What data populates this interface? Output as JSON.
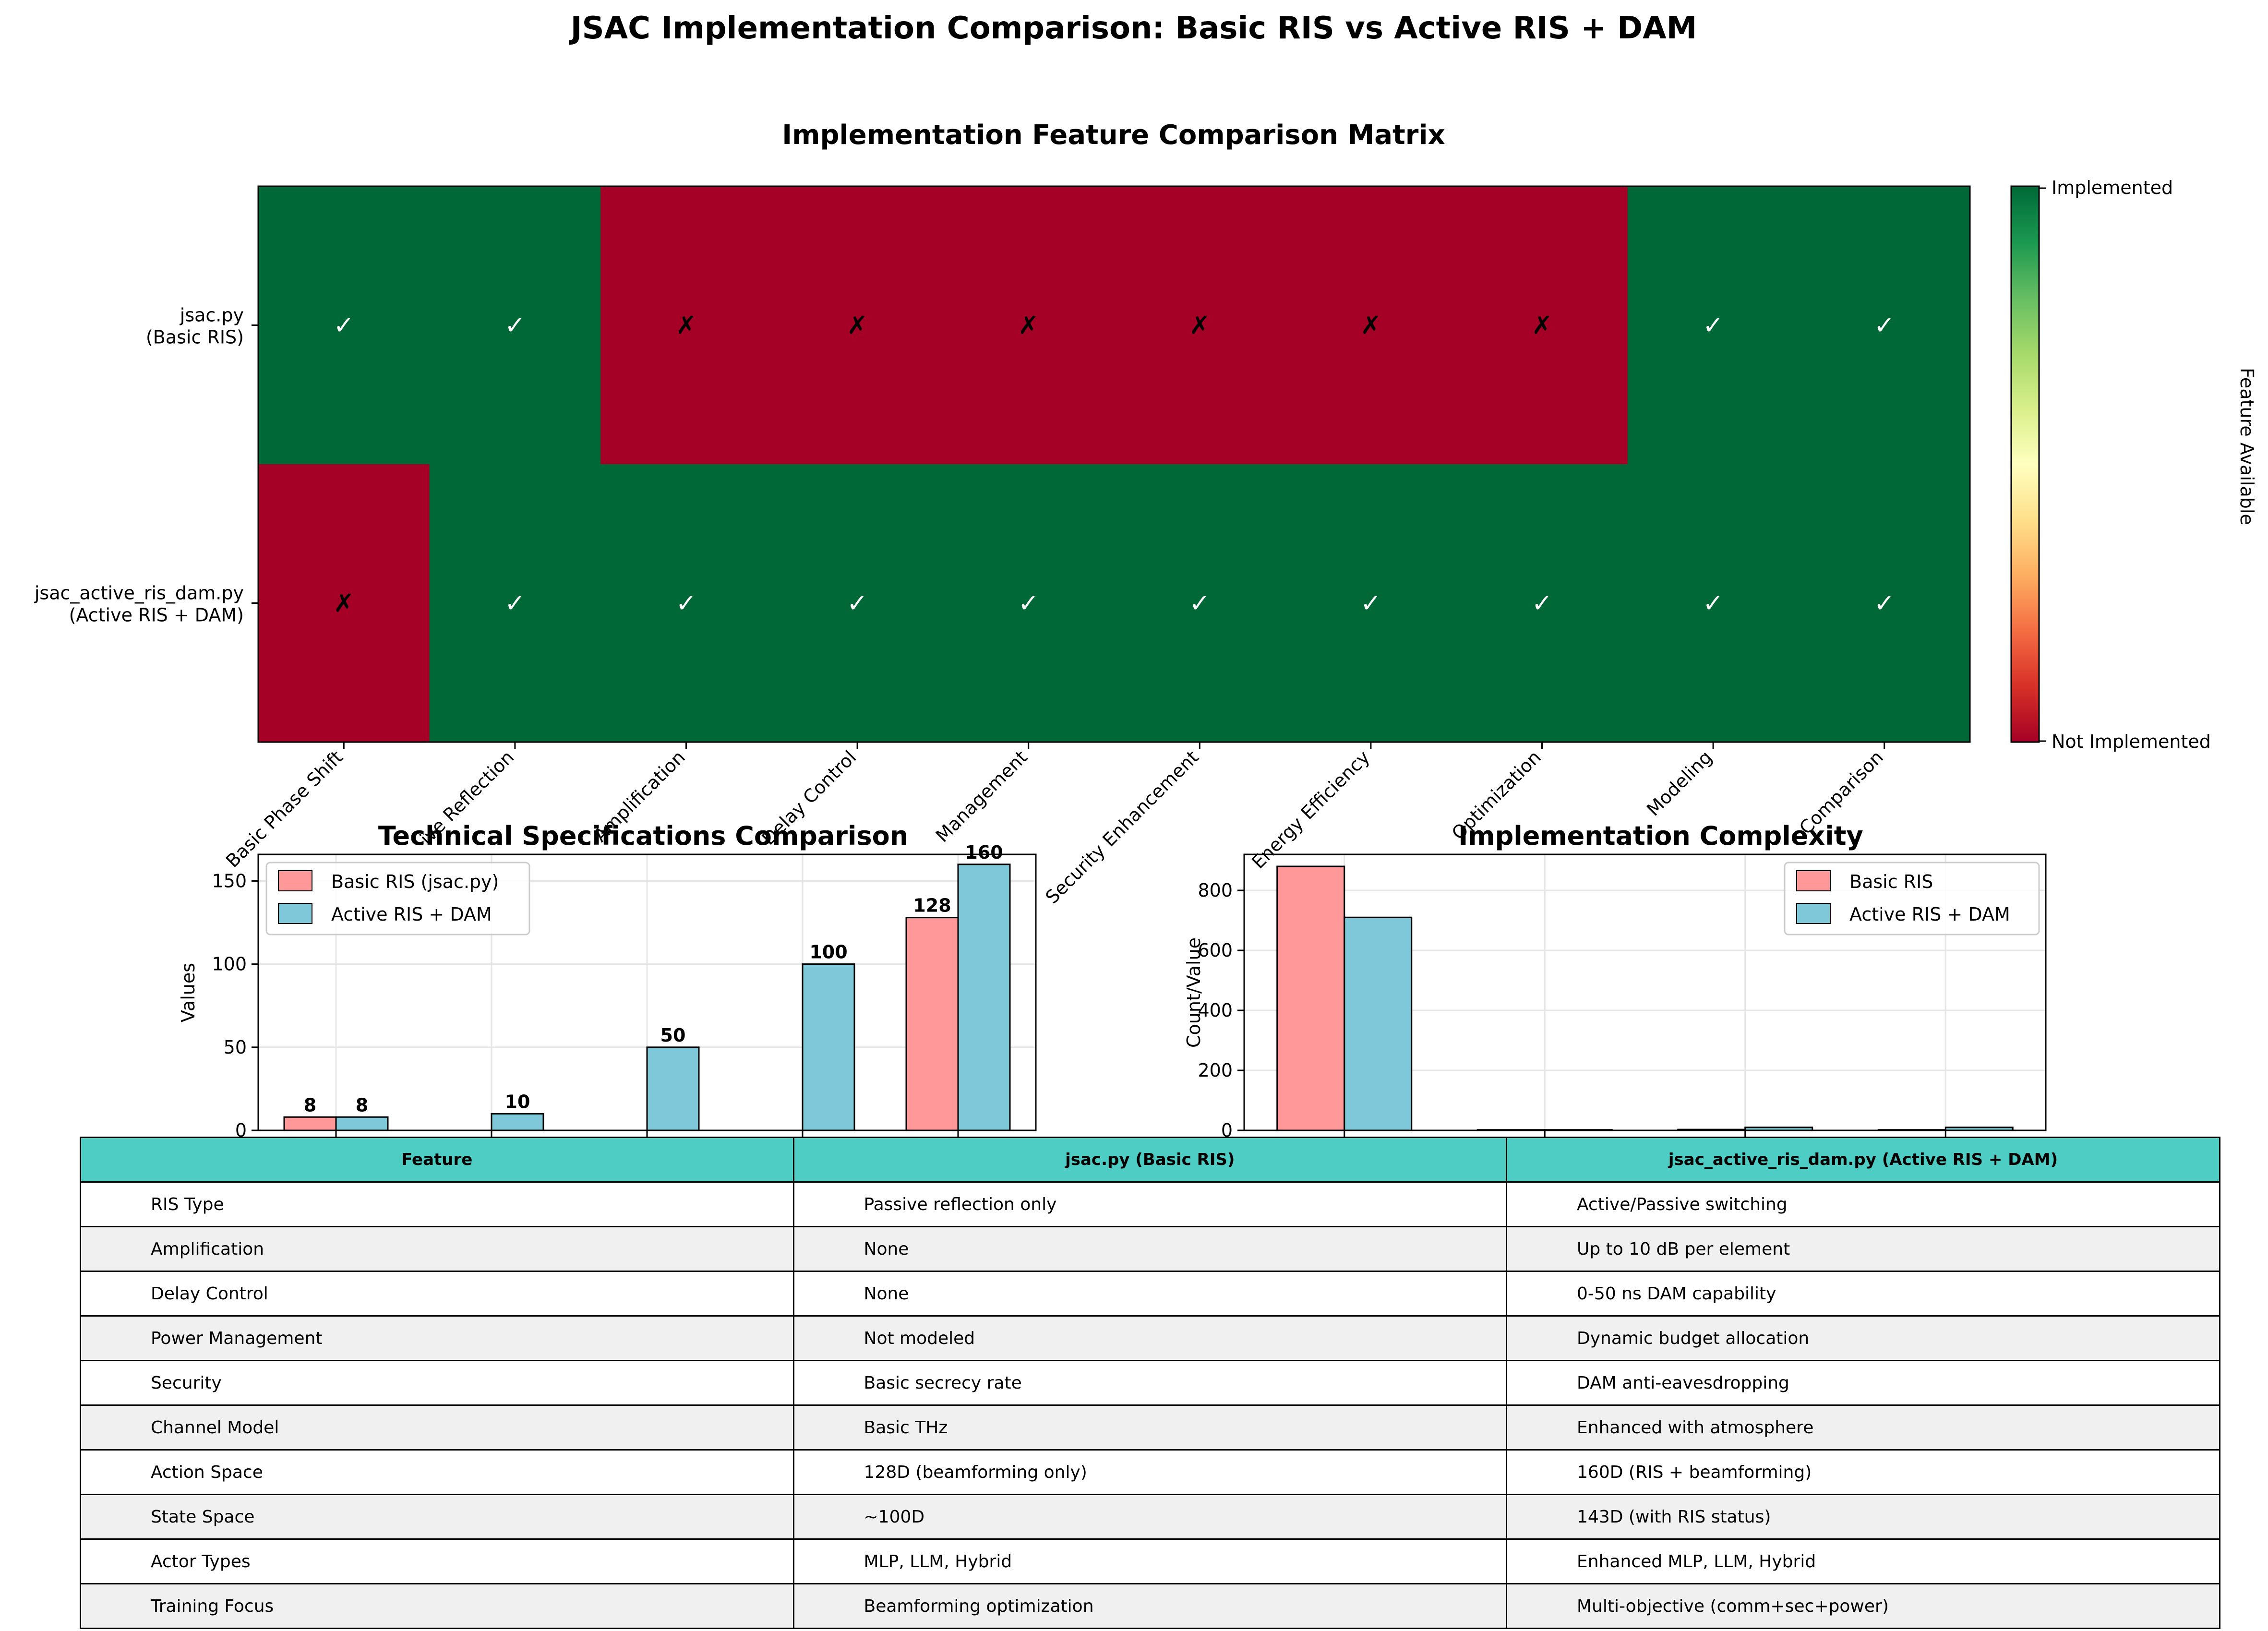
{
  "suptitle": "JSAC Implementation Comparison: Basic RIS vs Active RIS + DAM",
  "colors": {
    "implemented": "#006837",
    "not_implemented": "#a50026",
    "basic_ris": "#ff9999",
    "active_ris": "#7ec8d9",
    "table_header": "#4ecdc4",
    "table_row_alt": "#f0f0f0"
  },
  "chart_data": [
    {
      "type": "heatmap",
      "title": "Implementation Feature Comparison Matrix",
      "rows": [
        "jsac.py\n(Basic RIS)",
        "jsac_active_ris_dam.py\n(Active RIS + DAM)"
      ],
      "columns": [
        "Basic Phase Shift",
        "Passive Reflection",
        "Amplification",
        "Delay Control",
        "Power Management",
        "Security Enhancement",
        "Energy Efficiency",
        "Optimization",
        "Modeling",
        "Comparison"
      ],
      "visible_column_labels": [
        "Basic Phase Shift",
        "ive Reflection",
        "Amplification",
        "Delay Control",
        "Management",
        "Security Enhancement",
        "Energy Efficiency",
        "Optimization",
        "Modeling",
        "Comparison"
      ],
      "values": [
        [
          1,
          1,
          0,
          0,
          0,
          0,
          0,
          0,
          1,
          1
        ],
        [
          0,
          1,
          1,
          1,
          1,
          1,
          1,
          1,
          1,
          1
        ]
      ],
      "marks": {
        "yes": "✓",
        "no": "✗"
      },
      "colorbar": {
        "label": "Feature Available",
        "ticks": [
          "Implemented",
          "Not Implemented"
        ],
        "colormap": "RdYlGn",
        "range": [
          0,
          1
        ]
      }
    },
    {
      "type": "bar",
      "title": "Technical Specifications Comparison",
      "ylabel": "Values",
      "ylim": [
        0,
        166
      ],
      "yticks": [
        0,
        50,
        100,
        150
      ],
      "categories": [
        "",
        "",
        "",
        "",
        ""
      ],
      "series": [
        {
          "name": "Basic RIS (jsac.py)",
          "values": [
            8,
            0,
            0,
            0,
            128
          ],
          "labels": [
            "8",
            "",
            "",
            "",
            "128"
          ]
        },
        {
          "name": "Active RIS + DAM",
          "values": [
            8,
            10,
            50,
            100,
            160
          ],
          "labels": [
            "8",
            "10",
            "50",
            "100",
            "160"
          ]
        }
      ],
      "legend": "top-left",
      "grid": true
    },
    {
      "type": "bar",
      "title": "Implementation Complexity",
      "ylabel": "Count/Value",
      "ylim": [
        0,
        920
      ],
      "yticks": [
        0,
        200,
        400,
        600,
        800
      ],
      "categories": [
        "",
        "",
        "",
        ""
      ],
      "series": [
        {
          "name": "Basic RIS",
          "values": [
            880,
            2,
            3,
            2
          ]
        },
        {
          "name": "Active RIS + DAM",
          "values": [
            710,
            2,
            10,
            10
          ]
        }
      ],
      "legend": "top-right",
      "grid": true
    }
  ],
  "table": {
    "headers": [
      "Feature",
      "jsac.py (Basic RIS)",
      "jsac_active_ris_dam.py (Active RIS + DAM)"
    ],
    "rows": [
      [
        "RIS Type",
        "Passive reflection only",
        "Active/Passive switching"
      ],
      [
        "Amplification",
        "None",
        "Up to 10 dB per element"
      ],
      [
        "Delay Control",
        "None",
        "0-50 ns DAM capability"
      ],
      [
        "Power Management",
        "Not modeled",
        "Dynamic budget allocation"
      ],
      [
        "Security",
        "Basic secrecy rate",
        "DAM anti-eavesdropping"
      ],
      [
        "Channel Model",
        "Basic THz",
        "Enhanced with atmosphere"
      ],
      [
        "Action Space",
        "128D (beamforming only)",
        "160D (RIS + beamforming)"
      ],
      [
        "State Space",
        "~100D",
        "143D (with RIS status)"
      ],
      [
        "Actor Types",
        "MLP, LLM, Hybrid",
        "Enhanced MLP, LLM, Hybrid"
      ],
      [
        "Training Focus",
        "Beamforming optimization",
        "Multi-objective (comm+sec+power)"
      ]
    ]
  }
}
